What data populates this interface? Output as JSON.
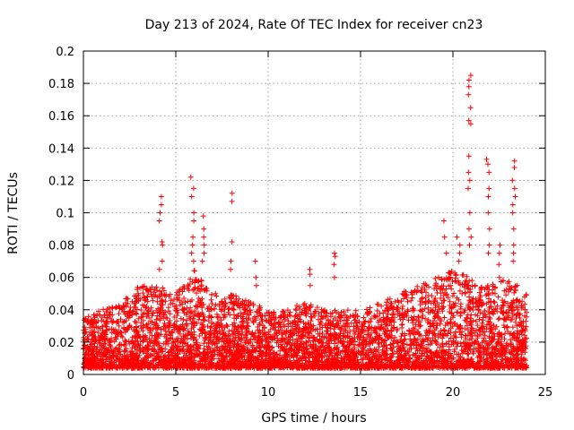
{
  "chart_data": {
    "type": "scatter",
    "title": "Day 213 of 2024, Rate Of TEC Index for receiver cn23",
    "xlabel": "GPS time / hours",
    "ylabel": "ROTI / TECUs",
    "xlim": [
      0,
      25
    ],
    "ylim": [
      0,
      0.2
    ],
    "xticks": [
      0,
      5,
      10,
      15,
      20,
      25
    ],
    "xtick_labels": [
      "0",
      "5",
      "10",
      "15",
      "20",
      "25"
    ],
    "yticks": [
      0,
      0.02,
      0.04,
      0.06,
      0.08,
      0.1,
      0.12,
      0.14,
      0.16,
      0.18,
      0.2
    ],
    "ytick_labels": [
      "0",
      "0.02",
      "0.04",
      "0.06",
      "0.08",
      "0.1",
      "0.12",
      "0.14",
      "0.16",
      "0.18",
      "0.2"
    ],
    "grid": true,
    "marker": "+",
    "marker_color": "#ff0000",
    "data_x_range": [
      0,
      24
    ],
    "series": [
      {
        "name": "ROTI",
        "description": "dense point cloud, baseline mostly 0.005-0.04",
        "envelope": [
          {
            "x": 0,
            "upper": 0.035
          },
          {
            "x": 1,
            "upper": 0.04
          },
          {
            "x": 2,
            "upper": 0.045
          },
          {
            "x": 3,
            "upper": 0.055
          },
          {
            "x": 4,
            "upper": 0.055
          },
          {
            "x": 5,
            "upper": 0.05
          },
          {
            "x": 6,
            "upper": 0.065
          },
          {
            "x": 7,
            "upper": 0.05
          },
          {
            "x": 8,
            "upper": 0.05
          },
          {
            "x": 9,
            "upper": 0.045
          },
          {
            "x": 10,
            "upper": 0.04
          },
          {
            "x": 11,
            "upper": 0.04
          },
          {
            "x": 12,
            "upper": 0.045
          },
          {
            "x": 13,
            "upper": 0.04
          },
          {
            "x": 14,
            "upper": 0.04
          },
          {
            "x": 15,
            "upper": 0.04
          },
          {
            "x": 16,
            "upper": 0.045
          },
          {
            "x": 17,
            "upper": 0.05
          },
          {
            "x": 18,
            "upper": 0.055
          },
          {
            "x": 19,
            "upper": 0.06
          },
          {
            "x": 20,
            "upper": 0.065
          },
          {
            "x": 21,
            "upper": 0.06
          },
          {
            "x": 22,
            "upper": 0.055
          },
          {
            "x": 23,
            "upper": 0.06
          },
          {
            "x": 24,
            "upper": 0.05
          }
        ],
        "spikes": [
          {
            "x": 4.2,
            "values": [
              0.11,
              0.105,
              0.1,
              0.095,
              0.082,
              0.08,
              0.07,
              0.065
            ]
          },
          {
            "x": 5.9,
            "values": [
              0.122,
              0.115,
              0.11,
              0.1,
              0.095,
              0.085,
              0.08,
              0.075,
              0.07
            ]
          },
          {
            "x": 6.5,
            "values": [
              0.098,
              0.09,
              0.085,
              0.08,
              0.075,
              0.07
            ]
          },
          {
            "x": 8.0,
            "values": [
              0.112,
              0.107,
              0.082,
              0.07,
              0.065
            ]
          },
          {
            "x": 9.3,
            "values": [
              0.07,
              0.06,
              0.055
            ]
          },
          {
            "x": 12.3,
            "values": [
              0.065,
              0.062,
              0.055
            ]
          },
          {
            "x": 13.6,
            "values": [
              0.075,
              0.073,
              0.068,
              0.06
            ]
          },
          {
            "x": 19.6,
            "values": [
              0.095,
              0.085,
              0.075
            ]
          },
          {
            "x": 20.3,
            "values": [
              0.085,
              0.08,
              0.075,
              0.07
            ]
          },
          {
            "x": 20.9,
            "values": [
              0.185,
              0.182,
              0.178,
              0.173,
              0.165,
              0.157,
              0.155,
              0.135,
              0.125,
              0.12,
              0.115,
              0.1,
              0.09,
              0.085,
              0.08
            ]
          },
          {
            "x": 21.9,
            "values": [
              0.133,
              0.13,
              0.125,
              0.115,
              0.11,
              0.1,
              0.09,
              0.08,
              0.075
            ]
          },
          {
            "x": 22.5,
            "values": [
              0.08,
              0.075,
              0.068,
              0.06
            ]
          },
          {
            "x": 23.3,
            "values": [
              0.132,
              0.128,
              0.12,
              0.115,
              0.11,
              0.105,
              0.1,
              0.09,
              0.08,
              0.075,
              0.07
            ]
          }
        ]
      }
    ]
  }
}
